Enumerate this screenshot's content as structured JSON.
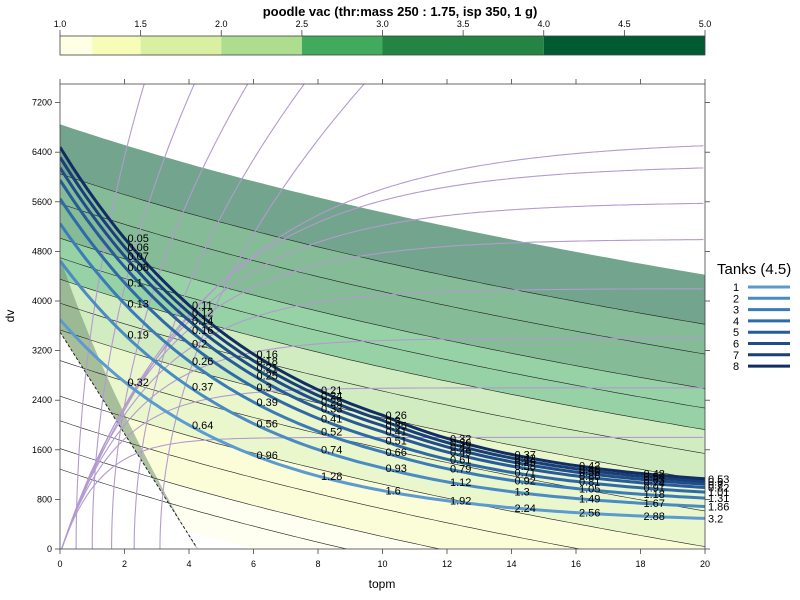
{
  "chart_data": {
    "type": "contour",
    "title": "poodle vac (thr:mass 250 : 1.75, isp 350, 1 g)",
    "xlabel": "topm",
    "ylabel": "dv",
    "xlim": [
      0,
      20
    ],
    "ylim": [
      0,
      7500
    ],
    "x_ticks": [
      0,
      2,
      4,
      6,
      8,
      10,
      12,
      14,
      16,
      18,
      20
    ],
    "y_ticks": [
      0,
      800,
      1600,
      2400,
      3200,
      4000,
      4800,
      5600,
      6400,
      7200
    ],
    "colorbar": {
      "ticks": [
        1.0,
        1.5,
        2.0,
        2.5,
        3.0,
        3.5,
        4.0,
        4.5,
        5.0
      ],
      "tick_labels": [
        "1.0",
        "1.5",
        "2.0",
        "2.5",
        "3.0",
        "3.5",
        "4.0",
        "4.5",
        "5.0"
      ],
      "bands": [
        {
          "from": 1.0,
          "to": 1.2,
          "color": "#ffffe5"
        },
        {
          "from": 1.2,
          "to": 1.5,
          "color": "#f7fcb9"
        },
        {
          "from": 1.5,
          "to": 2.0,
          "color": "#d9f0a3"
        },
        {
          "from": 2.0,
          "to": 2.5,
          "color": "#addd8e"
        },
        {
          "from": 2.5,
          "to": 3.0,
          "color": "#41ab5d"
        },
        {
          "from": 3.0,
          "to": 4.0,
          "color": "#238443"
        },
        {
          "from": 4.0,
          "to": 5.0,
          "color": "#005a32"
        }
      ]
    },
    "legend": {
      "title": "Tanks (4.5)",
      "position": "right",
      "entries": [
        "1",
        "2",
        "3",
        "4",
        "5",
        "6",
        "7",
        "8"
      ]
    },
    "tank_colors": [
      "#5b9bcf",
      "#4a8bc4",
      "#3b7bb8",
      "#2f6aa8",
      "#275b99",
      "#1f4d89",
      "#183f78",
      "#102e63"
    ],
    "series": [
      {
        "name": "1",
        "dv0": 3700,
        "labels": [
          {
            "x": 2,
            "text": "0.32"
          },
          {
            "x": 4,
            "text": "0.64"
          },
          {
            "x": 6,
            "text": "0.96"
          },
          {
            "x": 8,
            "text": "1.28"
          },
          {
            "x": 10,
            "text": "1.6"
          },
          {
            "x": 12,
            "text": "1.92"
          },
          {
            "x": 14,
            "text": "2.24"
          },
          {
            "x": 16,
            "text": "2.56"
          },
          {
            "x": 18,
            "text": "2.88"
          },
          {
            "x": 20,
            "text": "3.2"
          }
        ]
      },
      {
        "name": "2",
        "dv0": 4650,
        "labels": [
          {
            "x": 2,
            "text": "0.19"
          },
          {
            "x": 4,
            "text": "0.37"
          },
          {
            "x": 6,
            "text": "0.56"
          },
          {
            "x": 8,
            "text": "0.74"
          },
          {
            "x": 10,
            "text": "0.93"
          },
          {
            "x": 12,
            "text": "1.12"
          },
          {
            "x": 14,
            "text": "1.3"
          },
          {
            "x": 16,
            "text": "1.49"
          },
          {
            "x": 18,
            "text": "1.67"
          },
          {
            "x": 20,
            "text": "1.86"
          }
        ]
      },
      {
        "name": "3",
        "dv0": 5250,
        "labels": [
          {
            "x": 2,
            "text": "0.13"
          },
          {
            "x": 4,
            "text": "0.26"
          },
          {
            "x": 6,
            "text": "0.39"
          },
          {
            "x": 8,
            "text": "0.52"
          },
          {
            "x": 10,
            "text": "0.66"
          },
          {
            "x": 12,
            "text": "0.79"
          },
          {
            "x": 14,
            "text": "0.92"
          },
          {
            "x": 16,
            "text": "1.05"
          },
          {
            "x": 18,
            "text": "1.18"
          },
          {
            "x": 20,
            "text": "1.31"
          }
        ]
      },
      {
        "name": "4",
        "dv0": 5650,
        "labels": [
          {
            "x": 2,
            "text": "0.1"
          },
          {
            "x": 4,
            "text": "0.2"
          },
          {
            "x": 6,
            "text": "0.3"
          },
          {
            "x": 8,
            "text": "0.41"
          },
          {
            "x": 10,
            "text": "0.51"
          },
          {
            "x": 12,
            "text": "0.61"
          },
          {
            "x": 14,
            "text": "0.71"
          },
          {
            "x": 16,
            "text": "0.81"
          },
          {
            "x": 18,
            "text": "0.91"
          },
          {
            "x": 20,
            "text": "1.01"
          }
        ]
      },
      {
        "name": "5",
        "dv0": 5950,
        "labels": [
          {
            "x": 2,
            "text": "0.08"
          },
          {
            "x": 4,
            "text": "0.16"
          },
          {
            "x": 6,
            "text": "0.25"
          },
          {
            "x": 8,
            "text": "0.33"
          },
          {
            "x": 10,
            "text": "0.41"
          },
          {
            "x": 12,
            "text": "0.49"
          },
          {
            "x": 14,
            "text": "0.58"
          },
          {
            "x": 16,
            "text": "0.66"
          },
          {
            "x": 18,
            "text": "0.74"
          },
          {
            "x": 20,
            "text": "0.82"
          }
        ]
      },
      {
        "name": "6",
        "dv0": 6150,
        "labels": [
          {
            "x": 2,
            "text": "0.07"
          },
          {
            "x": 4,
            "text": "0.14"
          },
          {
            "x": 6,
            "text": "0.21"
          },
          {
            "x": 8,
            "text": "0.28"
          },
          {
            "x": 10,
            "text": "0.35"
          },
          {
            "x": 12,
            "text": "0.42"
          },
          {
            "x": 14,
            "text": "0.49"
          },
          {
            "x": 16,
            "text": "0.56"
          },
          {
            "x": 18,
            "text": "0.63"
          },
          {
            "x": 20,
            "text": "0.7"
          }
        ]
      },
      {
        "name": "7",
        "dv0": 6320,
        "labels": [
          {
            "x": 2,
            "text": "0.06"
          },
          {
            "x": 4,
            "text": "0.12"
          },
          {
            "x": 6,
            "text": "0.18"
          },
          {
            "x": 8,
            "text": "0.24"
          },
          {
            "x": 10,
            "text": "0.3"
          },
          {
            "x": 12,
            "text": "0.36"
          },
          {
            "x": 14,
            "text": "0.42"
          },
          {
            "x": 16,
            "text": "0.48"
          },
          {
            "x": 18,
            "text": "0.54"
          },
          {
            "x": 20,
            "text": "0.6"
          }
        ]
      },
      {
        "name": "8",
        "dv0": 6480,
        "labels": [
          {
            "x": 2,
            "text": "0.05"
          },
          {
            "x": 4,
            "text": "0.11"
          },
          {
            "x": 6,
            "text": "0.16"
          },
          {
            "x": 8,
            "text": "0.21"
          },
          {
            "x": 10,
            "text": "0.26"
          },
          {
            "x": 12,
            "text": "0.32"
          },
          {
            "x": 14,
            "text": "0.37"
          },
          {
            "x": 16,
            "text": "0.42"
          },
          {
            "x": 18,
            "text": "0.48"
          },
          {
            "x": 20,
            "text": "0.53"
          }
        ]
      }
    ],
    "grid": false
  }
}
